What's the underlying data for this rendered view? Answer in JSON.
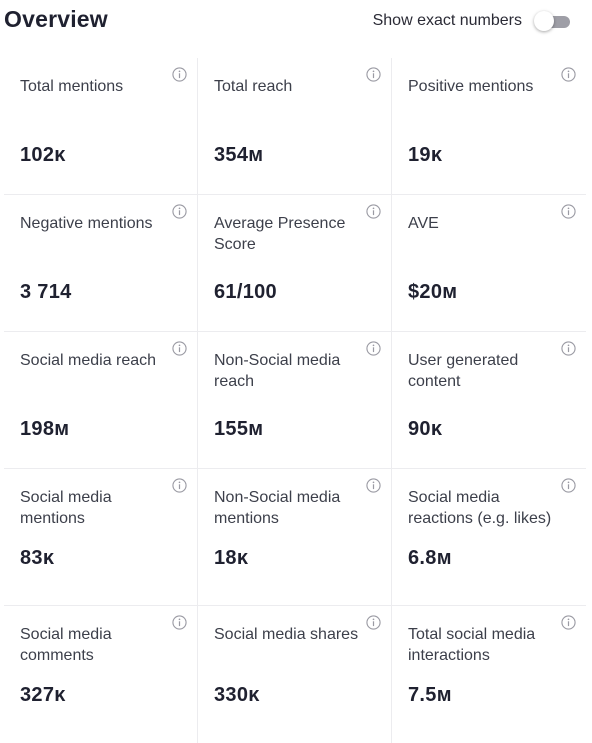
{
  "header": {
    "title": "Overview",
    "toggle_label": "Show exact numbers",
    "toggle_on": false
  },
  "tiles": [
    {
      "label": "Total mentions",
      "value": "102ᴋ"
    },
    {
      "label": "Total reach",
      "value": "354ᴍ"
    },
    {
      "label": "Positive mentions",
      "value": "19ᴋ"
    },
    {
      "label": "Negative mentions",
      "value": "3 714"
    },
    {
      "label": "Average Presence Score",
      "value": "61/100"
    },
    {
      "label": "AVE",
      "value": "$20ᴍ"
    },
    {
      "label": "Social media reach",
      "value": "198ᴍ"
    },
    {
      "label": "Non-Social media reach",
      "value": "155ᴍ"
    },
    {
      "label": "User generated content",
      "value": "90ᴋ"
    },
    {
      "label": "Social media mentions",
      "value": "83ᴋ"
    },
    {
      "label": "Non-Social media mentions",
      "value": "18ᴋ"
    },
    {
      "label": "Social media reactions (e.g. likes)",
      "value": "6.8ᴍ"
    },
    {
      "label": "Social media comments",
      "value": "327ᴋ"
    },
    {
      "label": "Social media shares",
      "value": "330ᴋ"
    },
    {
      "label": "Total social media interactions",
      "value": "7.5ᴍ"
    }
  ],
  "icons": {
    "info": "info-icon",
    "toggle": "toggle-switch"
  },
  "colors": {
    "text_primary": "#1f2130",
    "text_secondary": "#3c3f4a",
    "divider": "#ececef",
    "toggle_track_off": "#9e9ea6",
    "icon_gray": "#9a9aa3"
  }
}
